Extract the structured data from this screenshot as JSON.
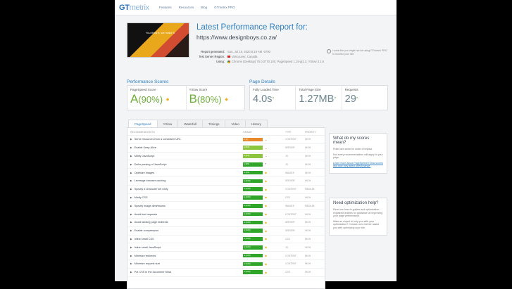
{
  "nav": {
    "logo_main": "GT",
    "logo_rest": "metrix",
    "links": [
      "Features",
      "Resources",
      "Blog",
      "GTmetrix PRO"
    ]
  },
  "report": {
    "thumb_text": "You think it, we make it",
    "title": "Latest Performance Report for:",
    "url": "https://www.designboys.co.za/",
    "generated_label": "Report generated:",
    "generated_value": "Sun, Jul 15, 2020 8:19 AM -0700",
    "region_label": "Test Server Region:",
    "region_value": "Vancouver, Canada",
    "using_label": "Using:",
    "using_value": "Chrome (Desktop) 75.0.3770.100, PageSpeed 1.15-gt1.3, YSlow 3.1.8",
    "promo": "Looks like you might not be using GTmetrix PRO to monitor your site"
  },
  "scores": {
    "heading": "Performance Scores",
    "pagespeed_label": "PageSpeed Score",
    "pagespeed_grade": "A",
    "pagespeed_pct": "(90%)",
    "yslow_label": "YSlow Score",
    "yslow_grade": "B",
    "yslow_pct": "(80%)"
  },
  "details": {
    "heading": "Page Details",
    "load_label": "Fully Loaded Time",
    "load_value": "4.0s",
    "size_label": "Total Page Size",
    "size_value": "1.27MB",
    "req_label": "Requests",
    "req_value": "29"
  },
  "tabs": [
    "PageSpeed",
    "YSlow",
    "Waterfall",
    "Timings",
    "Video",
    "History"
  ],
  "table": {
    "headers": [
      "RECOMMENDATION",
      "GRADE",
      "TYPE",
      "PRIORITY"
    ],
    "rows": [
      {
        "rec": "Serve resources from a consistent URL",
        "grade": "F (0)",
        "color": "orange",
        "ind": "down",
        "type": "CONTENT",
        "prio": "HIGH"
      },
      {
        "rec": "Enable Keep-Alive",
        "grade": "A (93)",
        "color": "lime",
        "ind": "down",
        "type": "SERVER",
        "prio": "HIGH"
      },
      {
        "rec": "Minify JavaScript",
        "grade": "A (93)",
        "color": "lime",
        "ind": "down",
        "type": "JS",
        "prio": "HIGH"
      },
      {
        "rec": "Defer parsing of JavaScript",
        "grade": "A (99)",
        "color": "green",
        "ind": "up",
        "type": "JS",
        "prio": "HIGH"
      },
      {
        "rec": "Optimize images",
        "grade": "A (99)",
        "color": "green",
        "ind": "dot",
        "type": "IMAGES",
        "prio": "HIGH"
      },
      {
        "rec": "Leverage browser caching",
        "grade": "A (100)",
        "color": "green",
        "ind": "dot",
        "type": "SERVER",
        "prio": "HIGH"
      },
      {
        "rec": "Specify a character set early",
        "grade": "A (100)",
        "color": "green",
        "ind": "dot",
        "type": "CONTENT",
        "prio": "MEDIUM"
      },
      {
        "rec": "Minify CSS",
        "grade": "A (100)",
        "color": "green",
        "ind": "dot",
        "type": "CSS",
        "prio": "HIGH"
      },
      {
        "rec": "Specify image dimensions",
        "grade": "A (100)",
        "color": "green",
        "ind": "dot",
        "type": "IMAGES",
        "prio": "MEDIUM"
      },
      {
        "rec": "Avoid bad requests",
        "grade": "A (100)",
        "color": "green",
        "ind": "dot",
        "type": "CONTENT",
        "prio": "HIGH"
      },
      {
        "rec": "Avoid landing page redirects",
        "grade": "A (100)",
        "color": "green",
        "ind": "dot",
        "type": "SERVER",
        "prio": "HIGH"
      },
      {
        "rec": "Enable compression",
        "grade": "A (100)",
        "color": "green",
        "ind": "dot",
        "type": "SERVER",
        "prio": "HIGH"
      },
      {
        "rec": "Inline small CSS",
        "grade": "A (100)",
        "color": "green",
        "ind": "dot",
        "type": "CSS",
        "prio": "HIGH"
      },
      {
        "rec": "Inline small JavaScript",
        "grade": "A (100)",
        "color": "green",
        "ind": "dot",
        "type": "JS",
        "prio": "HIGH"
      },
      {
        "rec": "Minimize redirects",
        "grade": "A (100)",
        "color": "green",
        "ind": "dot",
        "type": "CONTENT",
        "prio": "HIGH"
      },
      {
        "rec": "Minimize request size",
        "grade": "A (100)",
        "color": "green",
        "ind": "dot",
        "type": "CONTENT",
        "prio": "HIGH"
      },
      {
        "rec": "Put CSS in the document head",
        "grade": "A (100)",
        "color": "green",
        "ind": "dot",
        "type": "CSS",
        "prio": "HIGH"
      }
    ]
  },
  "sidebar": {
    "scores_title": "What do my scores mean?",
    "scores_text1": "Rules are sorted in order of impact.",
    "scores_text2": "Not every recommendation will apply to your page.",
    "scores_link": "Learn more about PageSpeed/YSlow scores and how they affect performance.",
    "help_title": "Need optimization help?",
    "help_text": "Read our how-to guides and optimization explained articles for guidance on improving your page performance.",
    "help_text2": "Want an expert to help you with your optimization? Contact us to further assist you with optimizing your site."
  },
  "colors": {
    "brand": "#2f7fc2",
    "grade_good": "#6dae3b",
    "bar_green": "#2fa52a",
    "bar_orange": "#e8882a"
  }
}
